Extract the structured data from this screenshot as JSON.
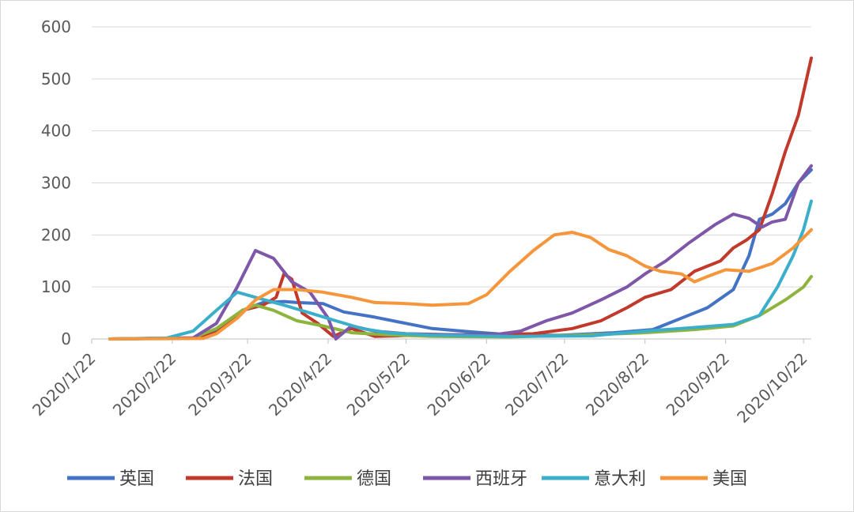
{
  "chart_data": {
    "type": "line",
    "title": "",
    "xlabel": "",
    "ylabel": "",
    "ylim": [
      0,
      600
    ],
    "y_ticks": [
      0,
      100,
      200,
      300,
      400,
      500,
      600
    ],
    "x_ticks": [
      "2020/1/22",
      "2020/2/22",
      "2020/3/22",
      "2020/4/22",
      "2020/5/22",
      "2020/6/22",
      "2020/7/22",
      "2020/8/22",
      "2020/9/22",
      "2020/10/22"
    ],
    "x_range": [
      "2020/1/22",
      "2020/10/25"
    ],
    "grid": "horizontal",
    "legend_position": "bottom",
    "series": [
      {
        "name": "英国",
        "color": "#4472C4",
        "points": [
          [
            "2020/1/29",
            0
          ],
          [
            "2020/3/1",
            2
          ],
          [
            "2020/3/10",
            15
          ],
          [
            "2020/3/20",
            55
          ],
          [
            "2020/3/28",
            70
          ],
          [
            "2020/4/5",
            72
          ],
          [
            "2020/4/10",
            70
          ],
          [
            "2020/4/20",
            68
          ],
          [
            "2020/4/28",
            52
          ],
          [
            "2020/5/10",
            42
          ],
          [
            "2020/5/22",
            30
          ],
          [
            "2020/6/1",
            20
          ],
          [
            "2020/6/15",
            14
          ],
          [
            "2020/7/1",
            8
          ],
          [
            "2020/7/20",
            7
          ],
          [
            "2020/8/10",
            12
          ],
          [
            "2020/8/25",
            18
          ],
          [
            "2020/9/5",
            40
          ],
          [
            "2020/9/15",
            60
          ],
          [
            "2020/9/25",
            95
          ],
          [
            "2020/10/1",
            160
          ],
          [
            "2020/10/5",
            230
          ],
          [
            "2020/10/10",
            240
          ],
          [
            "2020/10/15",
            260
          ],
          [
            "2020/10/20",
            300
          ],
          [
            "2020/10/25",
            325
          ]
        ]
      },
      {
        "name": "法国",
        "color": "#C0392B",
        "points": [
          [
            "2020/1/29",
            0
          ],
          [
            "2020/3/1",
            2
          ],
          [
            "2020/3/10",
            12
          ],
          [
            "2020/3/20",
            55
          ],
          [
            "2020/3/28",
            65
          ],
          [
            "2020/4/2",
            80
          ],
          [
            "2020/4/5",
            125
          ],
          [
            "2020/4/8",
            115
          ],
          [
            "2020/4/12",
            50
          ],
          [
            "2020/4/18",
            30
          ],
          [
            "2020/4/24",
            5
          ],
          [
            "2020/5/1",
            20
          ],
          [
            "2020/5/10",
            5
          ],
          [
            "2020/6/1",
            8
          ],
          [
            "2020/6/20",
            8
          ],
          [
            "2020/7/10",
            10
          ],
          [
            "2020/7/25",
            20
          ],
          [
            "2020/8/5",
            35
          ],
          [
            "2020/8/15",
            60
          ],
          [
            "2020/8/22",
            80
          ],
          [
            "2020/9/1",
            95
          ],
          [
            "2020/9/10",
            130
          ],
          [
            "2020/9/20",
            150
          ],
          [
            "2020/9/25",
            175
          ],
          [
            "2020/9/30",
            190
          ],
          [
            "2020/10/5",
            210
          ],
          [
            "2020/10/10",
            280
          ],
          [
            "2020/10/15",
            360
          ],
          [
            "2020/10/20",
            430
          ],
          [
            "2020/10/25",
            540
          ]
        ]
      },
      {
        "name": "德国",
        "color": "#8DB43E",
        "points": [
          [
            "2020/1/29",
            0
          ],
          [
            "2020/3/1",
            2
          ],
          [
            "2020/3/10",
            20
          ],
          [
            "2020/3/20",
            55
          ],
          [
            "2020/3/25",
            65
          ],
          [
            "2020/4/1",
            55
          ],
          [
            "2020/4/10",
            35
          ],
          [
            "2020/4/20",
            25
          ],
          [
            "2020/5/1",
            12
          ],
          [
            "2020/5/15",
            8
          ],
          [
            "2020/6/1",
            5
          ],
          [
            "2020/7/1",
            4
          ],
          [
            "2020/8/1",
            8
          ],
          [
            "2020/8/22",
            12
          ],
          [
            "2020/9/10",
            18
          ],
          [
            "2020/9/25",
            25
          ],
          [
            "2020/10/5",
            45
          ],
          [
            "2020/10/15",
            75
          ],
          [
            "2020/10/22",
            100
          ],
          [
            "2020/10/25",
            120
          ]
        ]
      },
      {
        "name": "西班牙",
        "color": "#7E57A8",
        "points": [
          [
            "2020/1/29",
            0
          ],
          [
            "2020/3/1",
            2
          ],
          [
            "2020/3/10",
            30
          ],
          [
            "2020/3/18",
            100
          ],
          [
            "2020/3/25",
            170
          ],
          [
            "2020/4/1",
            155
          ],
          [
            "2020/4/8",
            110
          ],
          [
            "2020/4/15",
            90
          ],
          [
            "2020/4/22",
            40
          ],
          [
            "2020/4/25",
            0
          ],
          [
            "2020/5/1",
            25
          ],
          [
            "2020/5/10",
            15
          ],
          [
            "2020/5/22",
            10
          ],
          [
            "2020/6/10",
            8
          ],
          [
            "2020/6/25",
            8
          ],
          [
            "2020/7/5",
            15
          ],
          [
            "2020/7/15",
            35
          ],
          [
            "2020/7/25",
            50
          ],
          [
            "2020/8/5",
            75
          ],
          [
            "2020/8/15",
            100
          ],
          [
            "2020/8/22",
            125
          ],
          [
            "2020/8/30",
            150
          ],
          [
            "2020/9/8",
            185
          ],
          [
            "2020/9/18",
            220
          ],
          [
            "2020/9/25",
            240
          ],
          [
            "2020/10/1",
            232
          ],
          [
            "2020/10/6",
            215
          ],
          [
            "2020/10/10",
            225
          ],
          [
            "2020/10/15",
            230
          ],
          [
            "2020/10/20",
            300
          ],
          [
            "2020/10/25",
            333
          ]
        ]
      },
      {
        "name": "意大利",
        "color": "#3BAFC9",
        "points": [
          [
            "2020/1/29",
            0
          ],
          [
            "2020/2/20",
            2
          ],
          [
            "2020/3/1",
            15
          ],
          [
            "2020/3/10",
            55
          ],
          [
            "2020/3/18",
            90
          ],
          [
            "2020/3/25",
            80
          ],
          [
            "2020/4/5",
            65
          ],
          [
            "2020/4/15",
            50
          ],
          [
            "2020/4/25",
            35
          ],
          [
            "2020/5/5",
            20
          ],
          [
            "2020/5/15",
            12
          ],
          [
            "2020/6/1",
            7
          ],
          [
            "2020/7/1",
            5
          ],
          [
            "2020/8/1",
            6
          ],
          [
            "2020/8/22",
            15
          ],
          [
            "2020/9/10",
            22
          ],
          [
            "2020/9/25",
            28
          ],
          [
            "2020/10/5",
            45
          ],
          [
            "2020/10/12",
            100
          ],
          [
            "2020/10/18",
            160
          ],
          [
            "2020/10/22",
            210
          ],
          [
            "2020/10/25",
            265
          ]
        ]
      },
      {
        "name": "美国",
        "color": "#F5963C",
        "points": [
          [
            "2020/1/29",
            0
          ],
          [
            "2020/3/5",
            1
          ],
          [
            "2020/3/10",
            10
          ],
          [
            "2020/3/18",
            40
          ],
          [
            "2020/3/25",
            75
          ],
          [
            "2020/4/1",
            95
          ],
          [
            "2020/4/10",
            95
          ],
          [
            "2020/4/20",
            90
          ],
          [
            "2020/5/1",
            80
          ],
          [
            "2020/5/10",
            70
          ],
          [
            "2020/5/22",
            68
          ],
          [
            "2020/6/1",
            65
          ],
          [
            "2020/6/15",
            68
          ],
          [
            "2020/6/22",
            85
          ],
          [
            "2020/7/1",
            130
          ],
          [
            "2020/7/10",
            170
          ],
          [
            "2020/7/18",
            200
          ],
          [
            "2020/7/25",
            205
          ],
          [
            "2020/8/1",
            195
          ],
          [
            "2020/8/8",
            172
          ],
          [
            "2020/8/15",
            160
          ],
          [
            "2020/8/22",
            140
          ],
          [
            "2020/8/28",
            130
          ],
          [
            "2020/9/5",
            125
          ],
          [
            "2020/9/10",
            110
          ],
          [
            "2020/9/15",
            120
          ],
          [
            "2020/9/22",
            133
          ],
          [
            "2020/10/1",
            130
          ],
          [
            "2020/10/10",
            145
          ],
          [
            "2020/10/18",
            175
          ],
          [
            "2020/10/25",
            210
          ]
        ]
      }
    ]
  }
}
